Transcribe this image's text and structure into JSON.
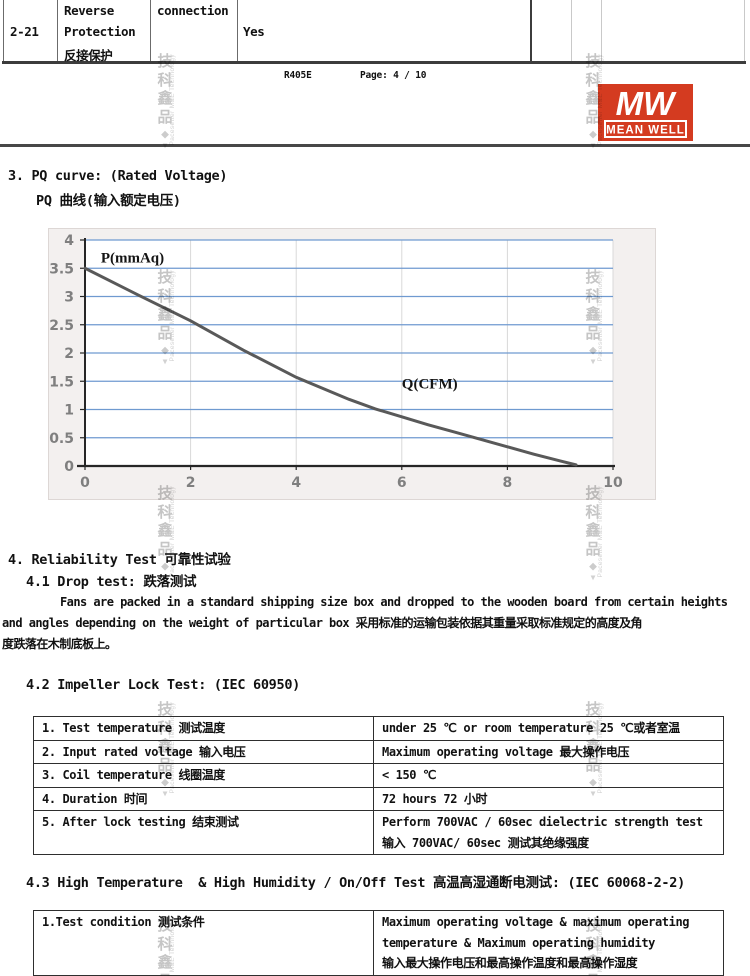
{
  "header": {
    "doc_code": "R405E",
    "page_label": "Page: 4 / 10"
  },
  "logo": {
    "mw": "MW",
    "name": "MEAN WELL",
    "red": "#d43b20"
  },
  "top_table": {
    "no": "2-21",
    "item_line1": "Reverse",
    "item_line2": "Protection",
    "item_line3": "反接保护",
    "item_col2": "connection",
    "value": "Yes"
  },
  "section3": {
    "title_en": "3. PQ curve: (Rated Voltage)",
    "title_cn": "PQ 曲线(输入额定电压)"
  },
  "chart_data": {
    "type": "line",
    "title": "PQ curve (Rated Voltage)",
    "xlabel": "Q(CFM)",
    "ylabel": "P(mmAq)",
    "xlim": [
      0,
      10
    ],
    "ylim": [
      0,
      4
    ],
    "x_ticks": [
      0,
      2,
      4,
      6,
      8,
      10
    ],
    "y_ticks": [
      0,
      0.5,
      1,
      1.5,
      2,
      2.5,
      3,
      3.5,
      4
    ],
    "grid": "on",
    "gridline_color": "#6f9ad0",
    "v_gridline_color": "#d9d9d9",
    "curve_color": "#595959",
    "plot_bg": "#ffffff",
    "frame_bg": "#f3f0ef",
    "series": [
      {
        "name": "PQ curve",
        "x": [
          0,
          1,
          2,
          3,
          4,
          5,
          5.5,
          6,
          6.5,
          7,
          7.5,
          8,
          8.5,
          9,
          9.3
        ],
        "y": [
          3.5,
          3.03,
          2.57,
          2.05,
          1.57,
          1.18,
          1.01,
          0.87,
          0.73,
          0.6,
          0.47,
          0.34,
          0.21,
          0.09,
          0.02
        ]
      }
    ],
    "annotations": [
      {
        "text": "P(mmAq)",
        "x": 0.3,
        "y": 3.6
      },
      {
        "text": "Q(CFM)",
        "x": 6.0,
        "y": 1.37
      }
    ]
  },
  "section4": {
    "title": "4. Reliability Test 可靠性试验",
    "s41": {
      "title": "4.1 Drop test: 跌落测试",
      "lines": [
        "Fans are packed in a standard shipping size box and dropped to the wooden board from certain heights",
        "and angles depending on the weight of particular box 采用标准的运输包装依据其重量采取标准规定的高度及角",
        "度跌落在木制底板上。"
      ]
    },
    "s42": {
      "title": "4.2 Impeller Lock Test: (IEC 60950)",
      "rows": [
        {
          "item": "1. Test temperature 测试温度",
          "value": "under 25 ℃ or room temperature 25 ℃或者室温"
        },
        {
          "item": "2. Input rated voltage 输入电压",
          "value": "Maximum operating voltage 最大操作电压"
        },
        {
          "item": "3. Coil temperature 线圈温度",
          "value": "< 150 ℃"
        },
        {
          "item": "4. Duration 时间",
          "value": "72 hours 72 小时"
        },
        {
          "item": "5. After lock testing 结束测试",
          "value": [
            "Perform 700VAC / 60sec dielectric strength test",
            "输入 700VAC/ 60sec 测试其绝缘强度"
          ]
        }
      ]
    },
    "s43": {
      "title": "4.3 High Temperature  & High Humidity / On/Off Test 高温高湿通断电测试: (IEC 60068-2-2)",
      "rows": [
        {
          "item": "1.Test condition 测试条件",
          "value": [
            "Maximum operating voltage & maximum operating",
            "temperature & Maximum operating humidity",
            "输入最大操作电压和最高操作温度和最高操作湿度"
          ]
        }
      ]
    }
  },
  "watermark": {
    "chars": [
      "技",
      "科",
      "鑫",
      "品"
    ],
    "en": "Pacesetter M&E Technology"
  }
}
